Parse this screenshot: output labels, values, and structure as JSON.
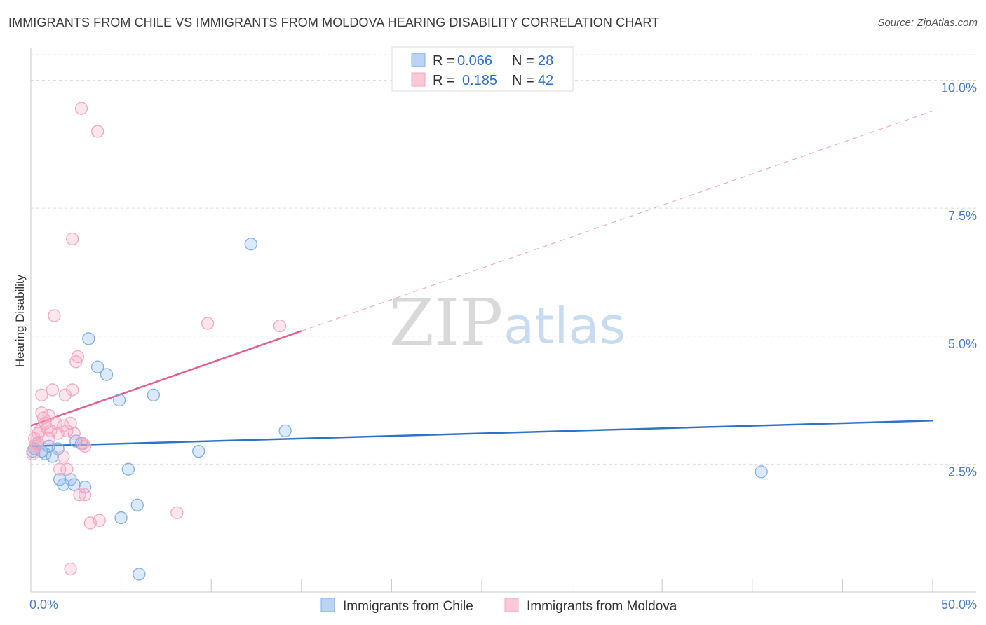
{
  "title": "IMMIGRANTS FROM CHILE VS IMMIGRANTS FROM MOLDOVA HEARING DISABILITY CORRELATION CHART",
  "source": "Source: ZipAtlas.com",
  "watermark": {
    "zip": "ZIP",
    "atlas": "atlas"
  },
  "chart_data": {
    "type": "scatter",
    "title": "IMMIGRANTS FROM CHILE VS IMMIGRANTS FROM MOLDOVA HEARING DISABILITY CORRELATION CHART",
    "ylabel": "Hearing Disability",
    "xlabel": "",
    "xlim": [
      0,
      50
    ],
    "ylim": [
      0,
      10.5
    ],
    "x_tick_labels": [
      {
        "value": 0,
        "label": "0.0%"
      },
      {
        "value": 50,
        "label": "50.0%"
      }
    ],
    "y_tick_labels": [
      {
        "value": 2.5,
        "label": "2.5%"
      },
      {
        "value": 5.0,
        "label": "5.0%"
      },
      {
        "value": 7.5,
        "label": "7.5%"
      },
      {
        "value": 10.0,
        "label": "10.0%"
      }
    ],
    "grid": true,
    "legend_placement": "top-center",
    "legend": [
      {
        "r_label": "R =",
        "r_value": "0.066",
        "n_label": "N =",
        "n_value": "28"
      },
      {
        "r_label": "R =",
        "r_value": "0.185",
        "n_label": "N =",
        "n_value": "42"
      }
    ],
    "series": [
      {
        "name": "Immigrants from Chile",
        "color": "#7fb0e8",
        "line_color": "#2f73c9",
        "trend": {
          "x0": 0,
          "y0": 2.85,
          "x1": 50,
          "y1": 3.35,
          "dashed_from": null
        },
        "points": [
          [
            0.2,
            2.8
          ],
          [
            0.4,
            2.9
          ],
          [
            0.6,
            2.75
          ],
          [
            0.8,
            2.7
          ],
          [
            1.0,
            2.85
          ],
          [
            1.2,
            2.65
          ],
          [
            1.5,
            2.8
          ],
          [
            1.6,
            2.2
          ],
          [
            1.8,
            2.1
          ],
          [
            2.2,
            2.2
          ],
          [
            2.4,
            2.1
          ],
          [
            2.5,
            2.95
          ],
          [
            2.8,
            2.9
          ],
          [
            3.0,
            2.05
          ],
          [
            3.2,
            4.95
          ],
          [
            3.7,
            4.4
          ],
          [
            4.2,
            4.25
          ],
          [
            4.9,
            3.75
          ],
          [
            5.0,
            1.45
          ],
          [
            5.4,
            2.4
          ],
          [
            5.9,
            1.7
          ],
          [
            6.0,
            0.35
          ],
          [
            6.8,
            3.85
          ],
          [
            9.3,
            2.75
          ],
          [
            12.2,
            6.8
          ],
          [
            14.1,
            3.15
          ],
          [
            40.5,
            2.35
          ],
          [
            0.1,
            2.75
          ]
        ]
      },
      {
        "name": "Immigrants from Moldova",
        "color": "#f4a7c0",
        "line_color": "#e0608a",
        "trend": {
          "x0": 0,
          "y0": 3.25,
          "x1": 15,
          "y1": 5.1,
          "dashed_to_x": 50,
          "dashed_to_y": 9.4
        },
        "points": [
          [
            0.1,
            2.7
          ],
          [
            0.2,
            3.0
          ],
          [
            0.3,
            2.9
          ],
          [
            0.4,
            3.1
          ],
          [
            0.5,
            3.15
          ],
          [
            0.6,
            3.5
          ],
          [
            0.6,
            3.85
          ],
          [
            0.7,
            3.4
          ],
          [
            0.8,
            3.3
          ],
          [
            0.9,
            3.2
          ],
          [
            1.0,
            3.0
          ],
          [
            1.0,
            3.45
          ],
          [
            1.1,
            3.15
          ],
          [
            1.2,
            3.95
          ],
          [
            1.3,
            5.4
          ],
          [
            1.4,
            3.3
          ],
          [
            1.5,
            3.1
          ],
          [
            1.6,
            2.4
          ],
          [
            1.8,
            3.25
          ],
          [
            1.8,
            2.65
          ],
          [
            1.9,
            3.85
          ],
          [
            2.0,
            3.15
          ],
          [
            2.0,
            2.4
          ],
          [
            2.2,
            3.3
          ],
          [
            2.3,
            3.95
          ],
          [
            2.3,
            6.9
          ],
          [
            2.2,
            0.45
          ],
          [
            2.4,
            3.1
          ],
          [
            2.5,
            4.5
          ],
          [
            2.6,
            4.6
          ],
          [
            2.7,
            1.9
          ],
          [
            2.8,
            9.45
          ],
          [
            2.9,
            2.9
          ],
          [
            3.0,
            2.85
          ],
          [
            3.0,
            1.9
          ],
          [
            3.3,
            1.35
          ],
          [
            3.7,
            9.0
          ],
          [
            3.8,
            1.4
          ],
          [
            8.1,
            1.55
          ],
          [
            9.8,
            5.25
          ],
          [
            13.8,
            5.2
          ],
          [
            0.3,
            2.85
          ]
        ]
      }
    ]
  }
}
